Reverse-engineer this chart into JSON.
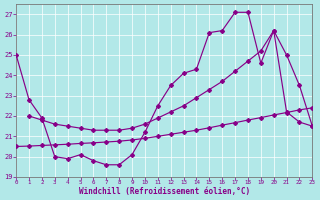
{
  "xlabel": "Windchill (Refroidissement éolien,°C)",
  "background_color": "#b2e8e8",
  "line_color": "#880088",
  "grid_color": "#ffffff",
  "xlim": [
    0,
    23
  ],
  "ylim": [
    19,
    27.5
  ],
  "yticks": [
    19,
    20,
    21,
    22,
    23,
    24,
    25,
    26,
    27
  ],
  "xticks": [
    0,
    1,
    2,
    3,
    4,
    5,
    6,
    7,
    8,
    9,
    10,
    11,
    12,
    13,
    14,
    15,
    16,
    17,
    18,
    19,
    20,
    21,
    22,
    23
  ],
  "line1_x": [
    0,
    1,
    2,
    3,
    4,
    5,
    6,
    7,
    8,
    9,
    10,
    11,
    12,
    13,
    14,
    15,
    16,
    17,
    18,
    19,
    20,
    21,
    22,
    23
  ],
  "line1_y": [
    25.0,
    22.8,
    21.9,
    20.0,
    19.9,
    20.1,
    19.8,
    19.6,
    19.6,
    20.1,
    21.2,
    22.5,
    23.5,
    24.1,
    24.3,
    26.1,
    26.2,
    27.1,
    27.1,
    24.6,
    26.2,
    22.2,
    21.7,
    21.5
  ],
  "line2_x": [
    1,
    2,
    3,
    4,
    5,
    6,
    7,
    8,
    9,
    10,
    11,
    12,
    13,
    14,
    15,
    16,
    17,
    18,
    19,
    20,
    21,
    22,
    23
  ],
  "line2_y": [
    22.0,
    21.8,
    21.6,
    21.5,
    21.4,
    21.3,
    21.3,
    21.3,
    21.4,
    21.6,
    21.9,
    22.2,
    22.5,
    22.9,
    23.3,
    23.7,
    24.2,
    24.7,
    25.2,
    26.2,
    25.0,
    23.5,
    21.5
  ],
  "line3_x": [
    0,
    1,
    2,
    3,
    4,
    5,
    6,
    7,
    8,
    9,
    10,
    11,
    12,
    13,
    14,
    15,
    16,
    17,
    18,
    19,
    20,
    21,
    22,
    23
  ],
  "line3_y": [
    20.5,
    20.52,
    20.55,
    20.58,
    20.61,
    20.65,
    20.68,
    20.72,
    20.76,
    20.82,
    20.9,
    21.0,
    21.1,
    21.2,
    21.3,
    21.42,
    21.55,
    21.67,
    21.8,
    21.92,
    22.05,
    22.17,
    22.3,
    22.4
  ]
}
